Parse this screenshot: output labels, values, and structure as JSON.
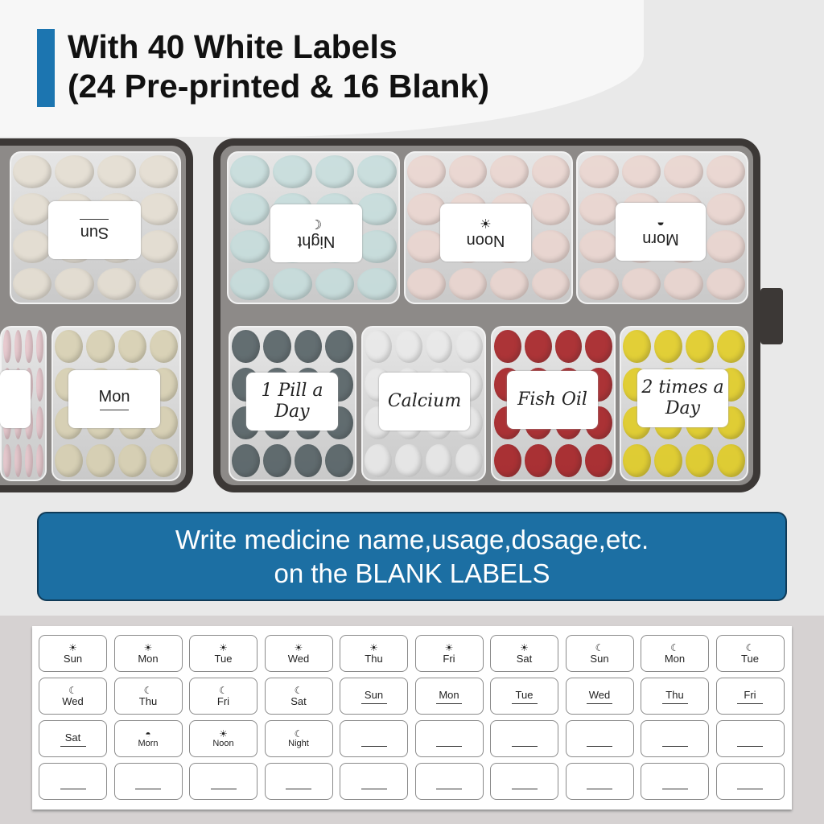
{
  "header": {
    "line1": "With 40 White Labels",
    "line2": "(24 Pre-printed & 16 Blank)"
  },
  "colors": {
    "accent": "#1c75b0",
    "banner": "#1c6fa3"
  },
  "box_labels": [
    {
      "text": "Sun",
      "flipped": true,
      "icon": ""
    },
    {
      "text": "Night",
      "flipped": true,
      "icon": "moon-icon"
    },
    {
      "text": "Noon",
      "flipped": true,
      "icon": "sun-icon"
    },
    {
      "text": "Morn",
      "flipped": true,
      "icon": "sunrise-icon"
    },
    {
      "text": "Mon",
      "flipped": false,
      "icon": ""
    },
    {
      "text": "1 Pill a Day",
      "flipped": false,
      "icon": ""
    },
    {
      "text": "Calcium",
      "flipped": false,
      "icon": ""
    },
    {
      "text": "Fish Oil",
      "flipped": false,
      "icon": ""
    },
    {
      "text": "2 times a Day",
      "flipped": false,
      "icon": ""
    }
  ],
  "banner": {
    "line1": "Write medicine name,usage,dosage,etc.",
    "line2": "on the BLANK LABELS"
  },
  "label_sheet": [
    {
      "icon": "sun",
      "text": "Sun"
    },
    {
      "icon": "sun",
      "text": "Mon"
    },
    {
      "icon": "sun",
      "text": "Tue"
    },
    {
      "icon": "sun",
      "text": "Wed"
    },
    {
      "icon": "sun",
      "text": "Thu"
    },
    {
      "icon": "sun",
      "text": "Fri"
    },
    {
      "icon": "sun",
      "text": "Sat"
    },
    {
      "icon": "moon",
      "text": "Sun"
    },
    {
      "icon": "moon",
      "text": "Mon"
    },
    {
      "icon": "moon",
      "text": "Tue"
    },
    {
      "icon": "moon",
      "text": "Wed"
    },
    {
      "icon": "moon",
      "text": "Thu"
    },
    {
      "icon": "moon",
      "text": "Fri"
    },
    {
      "icon": "moon",
      "text": "Sat"
    },
    {
      "icon": "",
      "text": "Sun"
    },
    {
      "icon": "",
      "text": "Mon"
    },
    {
      "icon": "",
      "text": "Tue"
    },
    {
      "icon": "",
      "text": "Wed"
    },
    {
      "icon": "",
      "text": "Thu"
    },
    {
      "icon": "",
      "text": "Fri"
    },
    {
      "icon": "",
      "text": "Sat"
    },
    {
      "icon": "sunrise",
      "text": "Morn"
    },
    {
      "icon": "sun",
      "text": "Noon"
    },
    {
      "icon": "moon",
      "text": "Night"
    },
    {
      "icon": "",
      "text": ""
    },
    {
      "icon": "",
      "text": ""
    },
    {
      "icon": "",
      "text": ""
    },
    {
      "icon": "",
      "text": ""
    },
    {
      "icon": "",
      "text": ""
    },
    {
      "icon": "",
      "text": ""
    },
    {
      "icon": "",
      "text": ""
    },
    {
      "icon": "",
      "text": ""
    },
    {
      "icon": "",
      "text": ""
    },
    {
      "icon": "",
      "text": ""
    },
    {
      "icon": "",
      "text": ""
    },
    {
      "icon": "",
      "text": ""
    },
    {
      "icon": "",
      "text": ""
    },
    {
      "icon": "",
      "text": ""
    },
    {
      "icon": "",
      "text": ""
    },
    {
      "icon": "",
      "text": ""
    }
  ]
}
